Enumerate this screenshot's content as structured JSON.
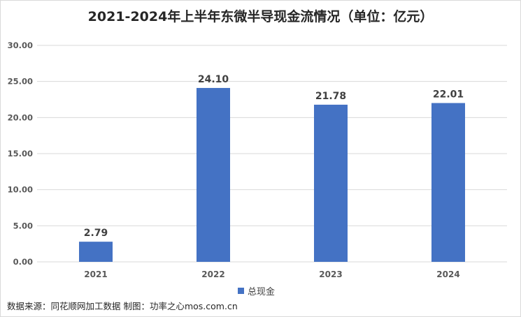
{
  "chart_data": {
    "type": "bar",
    "title": "2021-2024年上半年东微半导现金流情况（单位：亿元）",
    "categories": [
      "2021",
      "2022",
      "2023",
      "2024"
    ],
    "series": [
      {
        "name": "总现金",
        "values": [
          2.79,
          24.1,
          21.78,
          22.01
        ],
        "color": "#4472c4"
      }
    ],
    "data_labels": [
      "2.79",
      "24.10",
      "21.78",
      "22.01"
    ],
    "y_ticks": [
      "0.00",
      "5.00",
      "10.00",
      "15.00",
      "20.00",
      "25.00",
      "30.00"
    ],
    "ylim": [
      0,
      30
    ],
    "grid": true,
    "legend_position": "bottom"
  },
  "source_text": "数据来源：同花顺网加工数据 制图：功率之心mos.com.cn"
}
